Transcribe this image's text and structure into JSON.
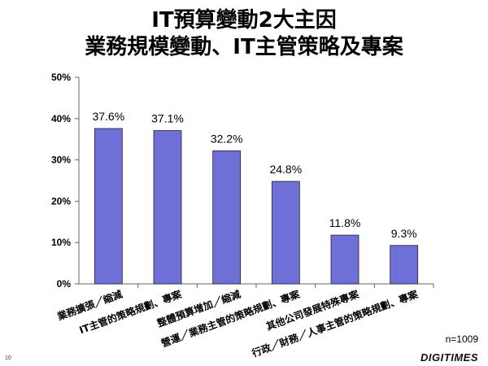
{
  "page_number": "10",
  "sample_size": "n=1009",
  "logo_text": "DIGITIMES",
  "chart_data": {
    "type": "bar",
    "title": [
      "IT預算變動2大主因",
      "業務規模變動、IT主管策略及專案"
    ],
    "categories": [
      "業務擴張／縮減",
      "IT主管的策略規劃、專案",
      "整體預算增加／縮減",
      "營運／業務主管的策略規劃、專案",
      "其他公司發展特殊專案",
      "行政／財務／人事主管的策略規劃、專案"
    ],
    "values": [
      37.6,
      37.1,
      32.2,
      24.8,
      11.8,
      9.3
    ],
    "value_labels": [
      "37.6%",
      "37.1%",
      "32.2%",
      "24.8%",
      "11.8%",
      "9.3%"
    ],
    "yticks": [
      0,
      10,
      20,
      30,
      40,
      50
    ],
    "ytick_labels": [
      "0%",
      "10%",
      "20%",
      "30%",
      "40%",
      "50%"
    ],
    "ylim": [
      0,
      50
    ],
    "grid": false,
    "bar_color": "#6f6fd8"
  }
}
